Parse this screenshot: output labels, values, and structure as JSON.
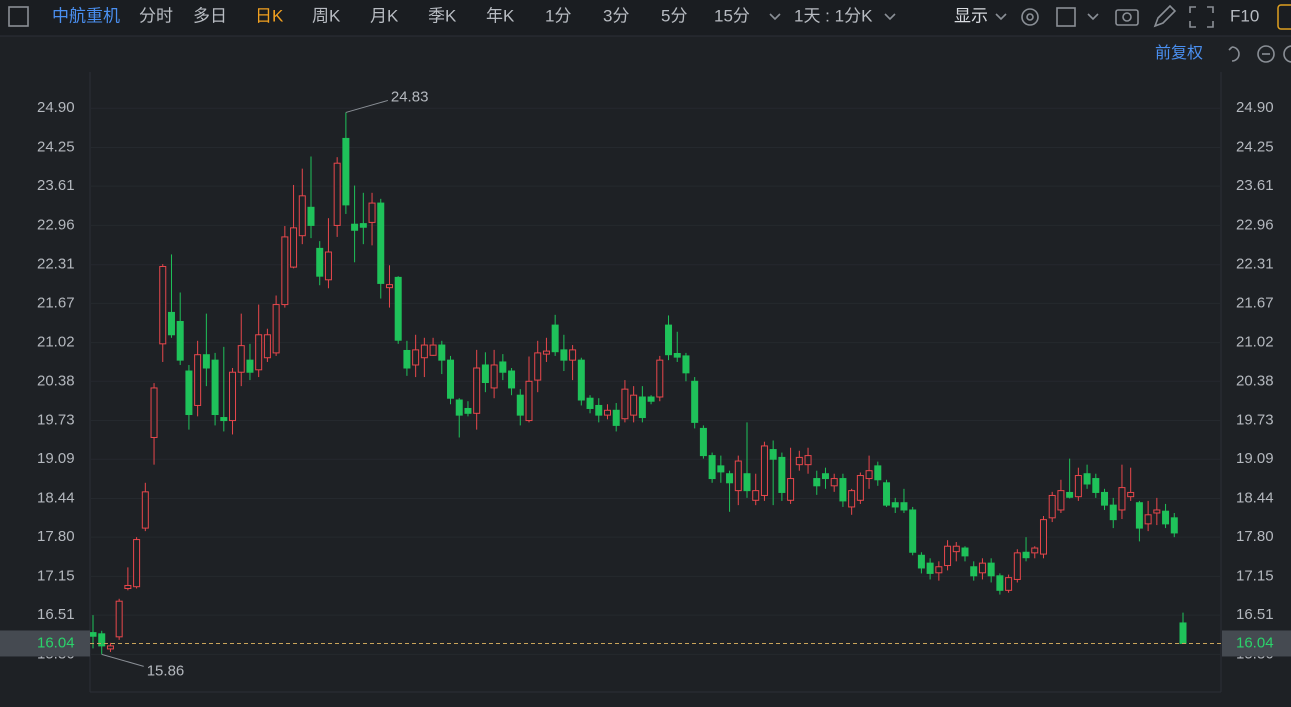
{
  "toolbar": {
    "stock_name": "中航重机",
    "tabs": [
      "分时",
      "多日",
      "日K",
      "周K",
      "月K",
      "季K",
      "年K",
      "1分",
      "3分",
      "5分",
      "15分"
    ],
    "active_tab": 2,
    "period_select": "1天 : 1分K",
    "display": "显示",
    "f10": "F10"
  },
  "chart_header": {
    "adjust": "前复权"
  },
  "chart_data": {
    "type": "candlestick",
    "up_color": "#e8474c",
    "down_color": "#1fc25a",
    "ylim": [
      15.27,
      25.45
    ],
    "yticks": [
      {
        "value": 24.9,
        "label": "24.90"
      },
      24.25,
      23.61,
      22.96,
      22.31,
      21.67,
      21.02,
      20.38,
      19.73,
      19.09,
      18.44,
      {
        "value": 17.8,
        "label": "17.80"
      },
      17.15,
      16.51,
      15.86
    ],
    "last_price": 16.04,
    "high_marker_index": 29,
    "low_marker_index": 1,
    "open": [
      16.22,
      16.2,
      15.95,
      16.15,
      16.95,
      16.98,
      17.95,
      19.45,
      21.0,
      21.52,
      21.37,
      20.55,
      19.98,
      20.82,
      20.73,
      19.78,
      19.73,
      20.53,
      20.73,
      20.57,
      20.77,
      20.85,
      21.65,
      22.27,
      22.79,
      23.26,
      22.58,
      22.06,
      22.96,
      24.4,
      22.98,
      22.99,
      23.01,
      23.33,
      21.93,
      22.1,
      20.89,
      20.65,
      20.77,
      20.81,
      20.98,
      20.73,
      20.07,
      19.93,
      19.85,
      20.65,
      20.27,
      20.7,
      20.55,
      20.15,
      19.73,
      20.4,
      20.83,
      21.31,
      20.9,
      20.73,
      20.73,
      20.1,
      19.98,
      19.82,
      19.9,
      19.76,
      19.82,
      20.12,
      20.12,
      20.12,
      21.31,
      20.84,
      20.8,
      20.38,
      19.6,
      19.15,
      18.98,
      18.85,
      18.57,
      18.85,
      18.41,
      18.49,
      19.25,
      19.12,
      18.41,
      19.0,
      19.0,
      18.77,
      18.85,
      18.65,
      18.77,
      18.3,
      18.41,
      18.77,
      18.98,
      18.7,
      18.37,
      18.37,
      18.25,
      17.5,
      17.37,
      17.21,
      17.33,
      17.56,
      17.62,
      17.31,
      17.21,
      17.37,
      17.16,
      16.92,
      17.1,
      17.55,
      17.54,
      17.52,
      18.12,
      18.25,
      18.54,
      18.47,
      18.85,
      18.77,
      18.54,
      18.33,
      18.25,
      18.47,
      18.37,
      18.02,
      18.2,
      18.23,
      18.12,
      16.38
    ],
    "close": [
      16.16,
      16.0,
      16.0,
      16.74,
      17.0,
      17.76,
      18.55,
      20.27,
      22.28,
      21.15,
      20.73,
      19.83,
      20.82,
      20.6,
      19.83,
      19.73,
      20.53,
      20.97,
      20.53,
      21.15,
      21.15,
      21.65,
      22.77,
      22.92,
      23.45,
      22.96,
      22.12,
      22.52,
      23.99,
      23.3,
      22.88,
      22.93,
      23.33,
      22.0,
      21.98,
      21.06,
      20.6,
      20.9,
      20.98,
      20.98,
      20.73,
      20.1,
      19.82,
      19.85,
      20.6,
      20.36,
      20.65,
      20.53,
      20.27,
      19.82,
      20.38,
      20.85,
      20.88,
      20.87,
      20.73,
      20.9,
      20.07,
      19.93,
      19.82,
      19.9,
      19.65,
      20.25,
      20.15,
      19.78,
      20.05,
      20.73,
      20.82,
      20.78,
      20.52,
      19.7,
      19.15,
      18.77,
      18.88,
      18.7,
      19.06,
      18.57,
      18.57,
      19.31,
      19.09,
      18.54,
      18.77,
      19.12,
      19.15,
      18.65,
      18.77,
      18.77,
      18.4,
      18.57,
      18.82,
      18.9,
      18.75,
      18.33,
      18.3,
      18.25,
      17.55,
      17.29,
      17.2,
      17.31,
      17.65,
      17.65,
      17.49,
      17.16,
      17.37,
      17.16,
      16.92,
      17.13,
      17.54,
      17.46,
      17.62,
      18.09,
      18.49,
      18.57,
      18.46,
      18.82,
      18.68,
      18.54,
      18.33,
      18.09,
      18.62,
      18.54,
      17.95,
      18.17,
      18.25,
      18.02,
      17.87,
      16.04
    ],
    "low": [
      15.96,
      15.86,
      15.9,
      16.1,
      16.92,
      16.95,
      17.9,
      19.0,
      20.7,
      21.1,
      20.65,
      19.58,
      19.8,
      20.3,
      19.65,
      19.55,
      19.5,
      20.3,
      20.4,
      20.45,
      20.7,
      20.8,
      21.6,
      22.25,
      22.65,
      22.75,
      21.97,
      21.92,
      22.77,
      23.15,
      22.35,
      22.65,
      22.63,
      21.75,
      21.6,
      21.0,
      20.47,
      20.45,
      20.45,
      20.8,
      20.5,
      20.0,
      19.45,
      19.8,
      19.58,
      20.2,
      20.1,
      20.4,
      20.15,
      19.65,
      19.7,
      20.2,
      20.7,
      20.8,
      20.55,
      20.4,
      19.98,
      19.85,
      19.7,
      19.75,
      19.55,
      19.7,
      19.7,
      19.7,
      20.0,
      20.05,
      20.73,
      20.7,
      20.38,
      19.6,
      19.1,
      18.7,
      18.7,
      18.22,
      18.33,
      18.45,
      18.33,
      18.4,
      18.33,
      18.4,
      18.35,
      18.9,
      18.85,
      18.5,
      18.6,
      18.55,
      18.3,
      18.17,
      18.35,
      18.6,
      18.65,
      18.3,
      18.2,
      18.2,
      17.5,
      17.2,
      17.1,
      17.08,
      17.25,
      17.4,
      17.4,
      17.08,
      17.1,
      17.05,
      16.85,
      16.88,
      17.05,
      17.4,
      17.45,
      17.45,
      18.05,
      18.2,
      18.44,
      18.4,
      18.6,
      18.45,
      18.25,
      17.95,
      18.1,
      18.4,
      17.73,
      17.9,
      18.0,
      17.95,
      17.8,
      16.04
    ],
    "high": [
      16.51,
      16.25,
      16.05,
      16.78,
      17.3,
      17.8,
      18.7,
      20.35,
      22.32,
      22.48,
      21.85,
      20.65,
      21.05,
      21.5,
      20.85,
      20.95,
      20.6,
      21.5,
      21.0,
      21.65,
      21.25,
      21.8,
      22.95,
      23.63,
      23.9,
      24.1,
      22.7,
      23.08,
      24.09,
      24.83,
      23.62,
      23.5,
      23.5,
      23.4,
      22.3,
      22.12,
      21.05,
      21.15,
      21.1,
      21.1,
      21.05,
      20.8,
      20.1,
      20.05,
      20.9,
      20.86,
      20.9,
      20.83,
      20.6,
      20.25,
      20.79,
      21.05,
      21.1,
      21.48,
      21.15,
      20.98,
      20.77,
      20.15,
      20.1,
      20.0,
      20.02,
      20.4,
      20.3,
      20.3,
      20.15,
      20.8,
      21.47,
      21.2,
      20.85,
      20.45,
      19.65,
      19.2,
      19.15,
      18.9,
      19.15,
      19.7,
      18.85,
      19.38,
      19.4,
      19.2,
      19.28,
      19.23,
      19.28,
      18.9,
      18.95,
      18.85,
      18.85,
      18.6,
      18.87,
      19.15,
      19.05,
      18.75,
      18.45,
      18.6,
      18.3,
      17.55,
      17.45,
      17.4,
      17.75,
      17.72,
      17.65,
      17.4,
      17.45,
      17.45,
      17.2,
      17.18,
      17.6,
      17.8,
      17.65,
      18.15,
      18.55,
      18.75,
      19.1,
      18.95,
      19.0,
      18.85,
      18.6,
      18.45,
      19.0,
      18.95,
      18.4,
      18.4,
      18.45,
      18.35,
      18.2,
      16.55
    ]
  }
}
